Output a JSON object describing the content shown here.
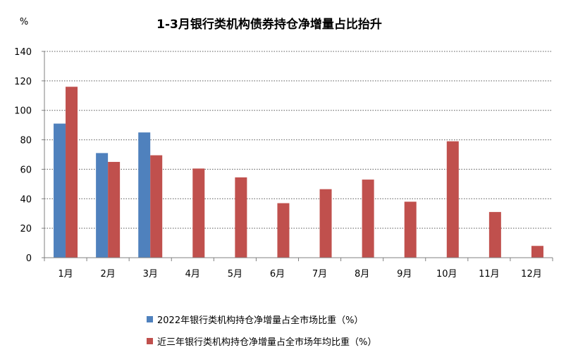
{
  "chart_data": {
    "type": "bar",
    "title": "1-3月银行类机构债券持仓净增量占比抬升",
    "ylabel": "%",
    "ylim": [
      0,
      140
    ],
    "yticks": [
      0,
      20,
      40,
      60,
      80,
      100,
      120,
      140
    ],
    "grid": true,
    "legend_position": "bottom",
    "categories": [
      "1月",
      "2月",
      "3月",
      "4月",
      "5月",
      "6月",
      "7月",
      "8月",
      "9月",
      "10月",
      "11月",
      "12月"
    ],
    "series": [
      {
        "name": "2022年银行类机构持仓净增量占全市场比重（%）",
        "color": "#4f81bd",
        "values": [
          91,
          71,
          85,
          null,
          null,
          null,
          null,
          null,
          null,
          null,
          null,
          null
        ]
      },
      {
        "name": "近三年银行类机构持仓净增量占全市场年均比重（%）",
        "color": "#c0504d",
        "values": [
          116,
          65,
          69.5,
          60.5,
          54.5,
          37,
          46.5,
          53,
          38,
          79,
          31,
          8
        ]
      }
    ]
  }
}
